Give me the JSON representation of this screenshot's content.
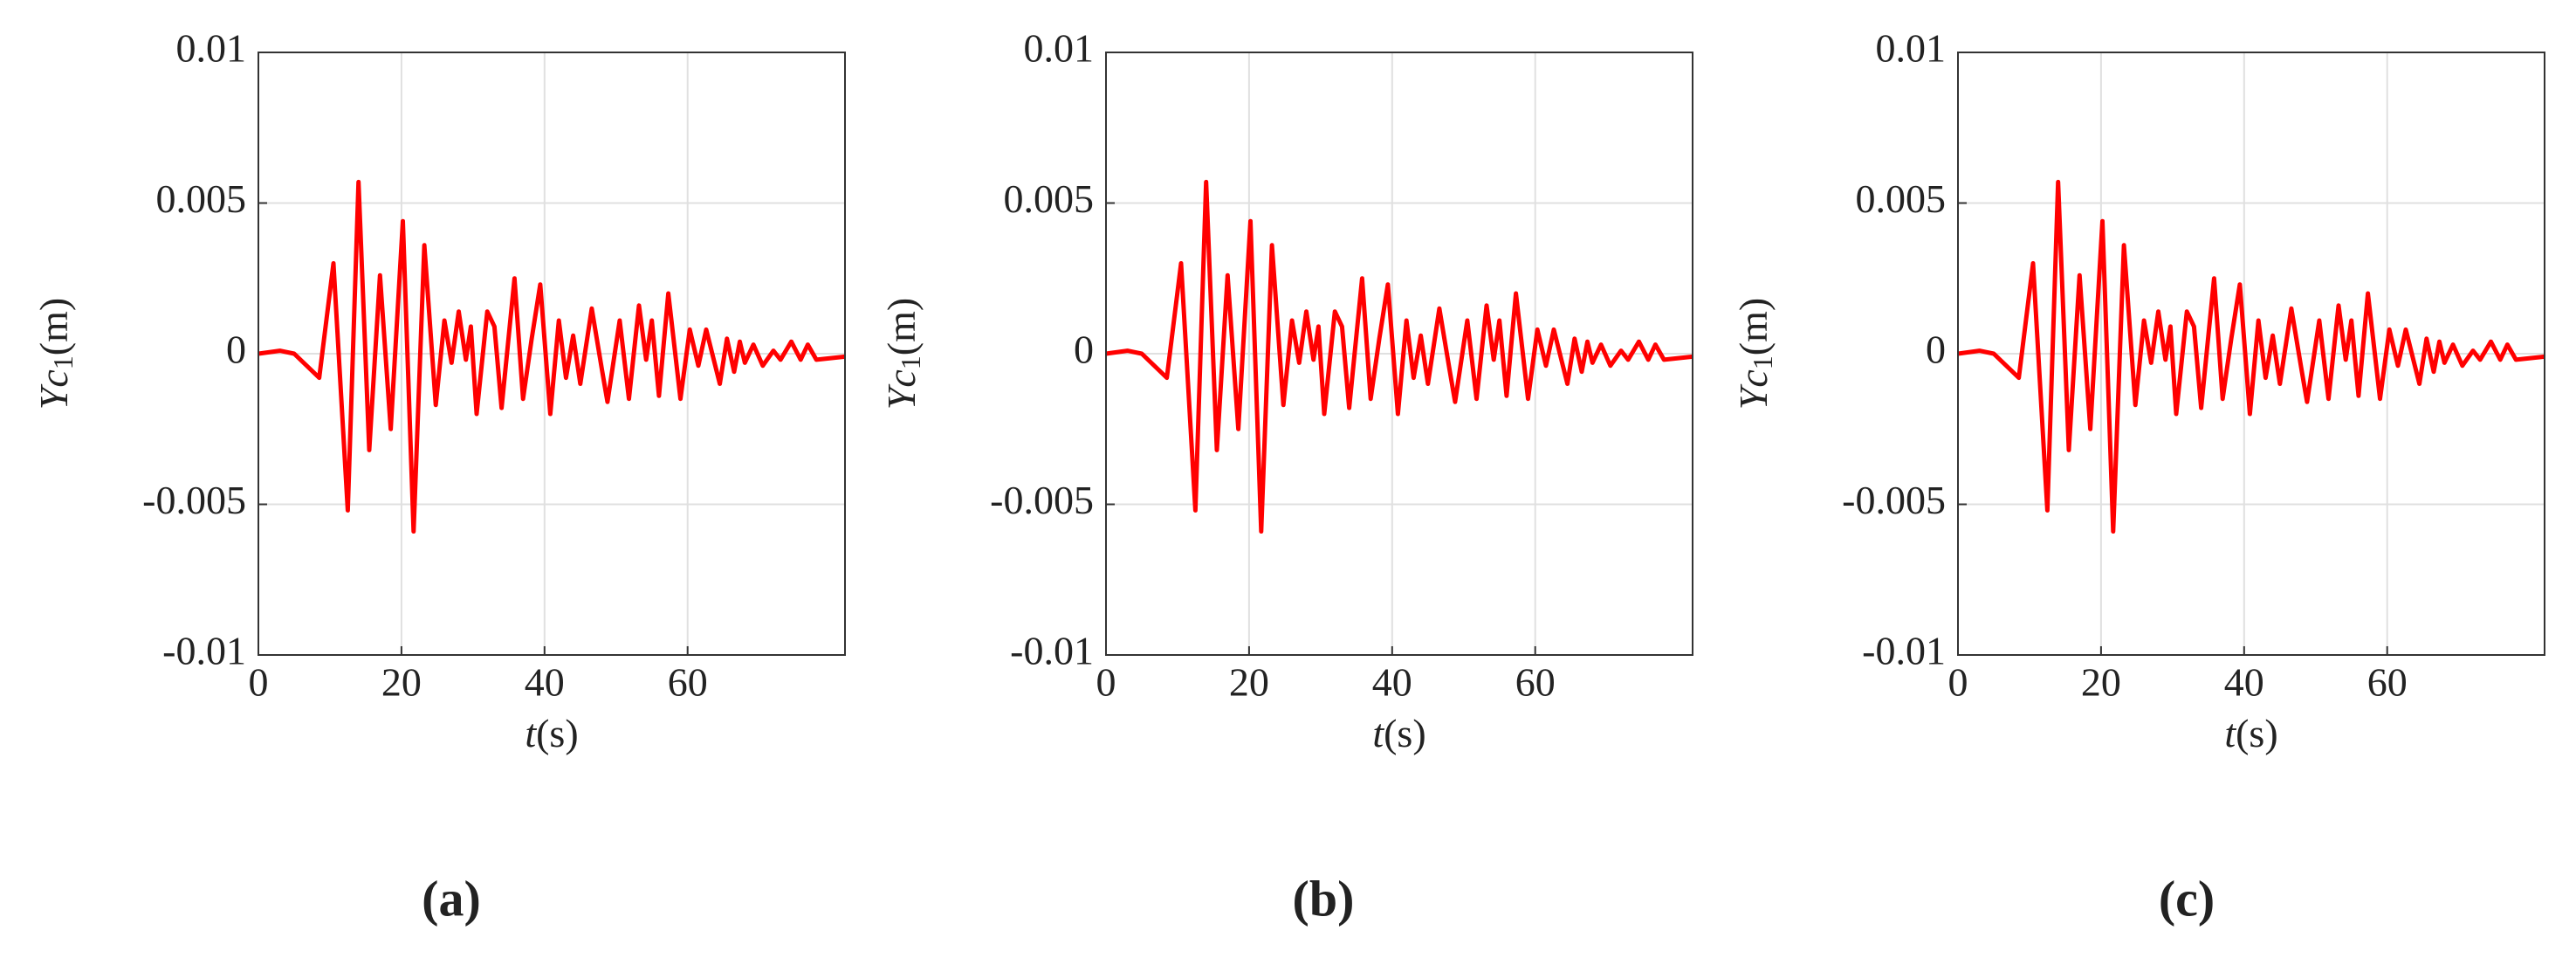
{
  "chart_data": [
    {
      "type": "line",
      "caption": "(a)",
      "x_label": {
        "var": "t",
        "unit": "(s)"
      },
      "y_label": {
        "var": "Yc",
        "subscript": "1",
        "unit": "(m)"
      },
      "xlim": [
        0,
        82
      ],
      "xticks": [
        0,
        20,
        40,
        60
      ],
      "ylim": [
        -0.01,
        0.01
      ],
      "yticks": [
        -0.01,
        -0.005,
        0,
        0.005,
        0.01
      ],
      "grid": true,
      "x": [
        0,
        3,
        5,
        8.5,
        10.5,
        12.5,
        14,
        15.5,
        17,
        18.5,
        20.2,
        21.7,
        23.2,
        24.8,
        26,
        27,
        28,
        29,
        29.7,
        30.5,
        32,
        33,
        34,
        35.8,
        37,
        38.2,
        39.4,
        40.8,
        42,
        43,
        44,
        45,
        46.6,
        48,
        48.8,
        50.5,
        51.8,
        53.2,
        54.2,
        55,
        56,
        57.3,
        59,
        60.3,
        61.5,
        62.6,
        64.5,
        65.5,
        66.5,
        67.3,
        68,
        69.2,
        70.5,
        72,
        73,
        74.5,
        75.8,
        76.8,
        78,
        82
      ],
      "series": [
        {
          "color": "#ff0000",
          "values": [
            0,
            0.0001,
            0,
            -0.0008,
            0.003,
            -0.0052,
            0.0057,
            -0.0032,
            0.0026,
            -0.0025,
            0.0044,
            -0.0059,
            0.0036,
            -0.0017,
            0.0011,
            -0.0003,
            0.0014,
            -0.0002,
            0.0009,
            -0.002,
            0.0014,
            0.0009,
            -0.0018,
            0.0025,
            -0.0015,
            0.0005,
            0.0023,
            -0.002,
            0.0011,
            -0.0008,
            0.0006,
            -0.001,
            0.0015,
            -0.0005,
            -0.0016,
            0.0011,
            -0.0015,
            0.0016,
            -0.0002,
            0.0011,
            -0.0014,
            0.002,
            -0.0015,
            0.0008,
            -0.0004,
            0.0008,
            -0.001,
            0.0005,
            -0.0006,
            0.0004,
            -0.0003,
            0.0003,
            -0.0004,
            0.0001,
            -0.0002,
            0.0004,
            -0.0002,
            0.0003,
            -0.0002,
            -0.0001
          ]
        }
      ]
    },
    {
      "type": "line",
      "caption": "(b)",
      "x_label": {
        "var": "t",
        "unit": "(s)"
      },
      "y_label": {
        "var": "Yc",
        "subscript": "1",
        "unit": "(m)"
      },
      "xlim": [
        0,
        82
      ],
      "xticks": [
        0,
        20,
        40,
        60
      ],
      "ylim": [
        -0.01,
        0.01
      ],
      "yticks": [
        -0.01,
        -0.005,
        0,
        0.005,
        0.01
      ],
      "grid": true,
      "x": [
        0,
        3,
        5,
        8.5,
        10.5,
        12.5,
        14,
        15.5,
        17,
        18.5,
        20.2,
        21.7,
        23.2,
        24.8,
        26,
        27,
        28,
        29,
        29.7,
        30.5,
        32,
        33,
        34,
        35.8,
        37,
        38.2,
        39.4,
        40.8,
        42,
        43,
        44,
        45,
        46.6,
        48,
        48.8,
        50.5,
        51.8,
        53.2,
        54.2,
        55,
        56,
        57.3,
        59,
        60.3,
        61.5,
        62.6,
        64.5,
        65.5,
        66.5,
        67.3,
        68,
        69.2,
        70.5,
        72,
        73,
        74.5,
        75.8,
        76.8,
        78,
        82
      ],
      "series": [
        {
          "color": "#ff0000",
          "values": [
            0,
            0.0001,
            0,
            -0.0008,
            0.003,
            -0.0052,
            0.0057,
            -0.0032,
            0.0026,
            -0.0025,
            0.0044,
            -0.0059,
            0.0036,
            -0.0017,
            0.0011,
            -0.0003,
            0.0014,
            -0.0002,
            0.0009,
            -0.002,
            0.0014,
            0.0009,
            -0.0018,
            0.0025,
            -0.0015,
            0.0005,
            0.0023,
            -0.002,
            0.0011,
            -0.0008,
            0.0006,
            -0.001,
            0.0015,
            -0.0005,
            -0.0016,
            0.0011,
            -0.0015,
            0.0016,
            -0.0002,
            0.0011,
            -0.0014,
            0.002,
            -0.0015,
            0.0008,
            -0.0004,
            0.0008,
            -0.001,
            0.0005,
            -0.0006,
            0.0004,
            -0.0003,
            0.0003,
            -0.0004,
            0.0001,
            -0.0002,
            0.0004,
            -0.0002,
            0.0003,
            -0.0002,
            -0.0001
          ]
        }
      ]
    },
    {
      "type": "line",
      "caption": "(c)",
      "x_label": {
        "var": "t",
        "unit": "(s)"
      },
      "y_label": {
        "var": "Yc",
        "subscript": "1",
        "unit": "(m)"
      },
      "xlim": [
        0,
        82
      ],
      "xticks": [
        0,
        20,
        40,
        60
      ],
      "ylim": [
        -0.01,
        0.01
      ],
      "yticks": [
        -0.01,
        -0.005,
        0,
        0.005,
        0.01
      ],
      "grid": true,
      "x": [
        0,
        3,
        5,
        8.5,
        10.5,
        12.5,
        14,
        15.5,
        17,
        18.5,
        20.2,
        21.7,
        23.2,
        24.8,
        26,
        27,
        28,
        29,
        29.7,
        30.5,
        32,
        33,
        34,
        35.8,
        37,
        38.2,
        39.4,
        40.8,
        42,
        43,
        44,
        45,
        46.6,
        48,
        48.8,
        50.5,
        51.8,
        53.2,
        54.2,
        55,
        56,
        57.3,
        59,
        60.3,
        61.5,
        62.6,
        64.5,
        65.5,
        66.5,
        67.3,
        68,
        69.2,
        70.5,
        72,
        73,
        74.5,
        75.8,
        76.8,
        78,
        82
      ],
      "series": [
        {
          "color": "#ff0000",
          "values": [
            0,
            0.0001,
            0,
            -0.0008,
            0.003,
            -0.0052,
            0.0057,
            -0.0032,
            0.0026,
            -0.0025,
            0.0044,
            -0.0059,
            0.0036,
            -0.0017,
            0.0011,
            -0.0003,
            0.0014,
            -0.0002,
            0.0009,
            -0.002,
            0.0014,
            0.0009,
            -0.0018,
            0.0025,
            -0.0015,
            0.0005,
            0.0023,
            -0.002,
            0.0011,
            -0.0008,
            0.0006,
            -0.001,
            0.0015,
            -0.0005,
            -0.0016,
            0.0011,
            -0.0015,
            0.0016,
            -0.0002,
            0.0011,
            -0.0014,
            0.002,
            -0.0015,
            0.0008,
            -0.0004,
            0.0008,
            -0.001,
            0.0005,
            -0.0006,
            0.0004,
            -0.0003,
            0.0003,
            -0.0004,
            0.0001,
            -0.0002,
            0.0004,
            -0.0002,
            0.0003,
            -0.0002,
            -0.0001
          ]
        }
      ]
    }
  ]
}
